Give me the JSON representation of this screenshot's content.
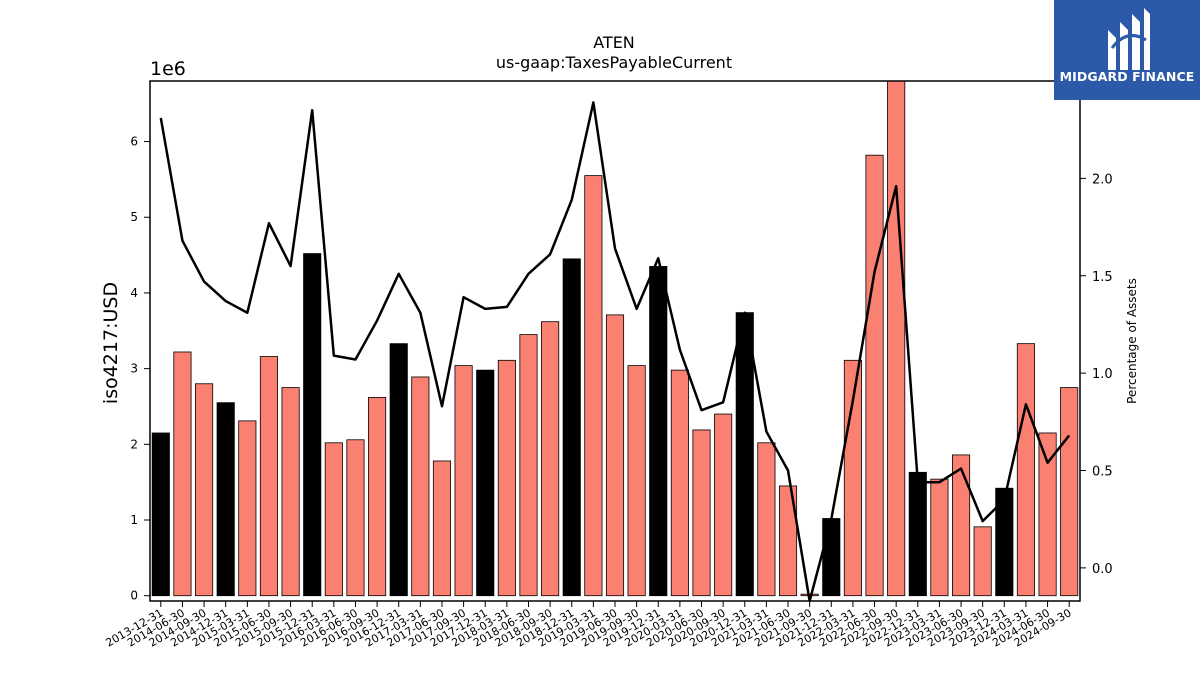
{
  "chart_data": {
    "type": "bar",
    "title": "ATEN",
    "subtitle": "us-gaap:TaxesPayableCurrent",
    "ylabel": "iso4217:USD",
    "y2label": "Percentage of Assets",
    "y_multiplier_label": "1e6",
    "ylim": [
      -0.07,
      6.8
    ],
    "y2lim": [
      -0.17,
      2.5
    ],
    "yticks": [
      0,
      1,
      2,
      3,
      4,
      5,
      6
    ],
    "y2ticks": [
      "0.0",
      "0.5",
      "1.0",
      "1.5",
      "2.0"
    ],
    "colors": {
      "q4_bar": "#000000",
      "other_bar": "#fa8072",
      "line": "#000000"
    },
    "categories": [
      "2013-12-31",
      "2014-06-30",
      "2014-09-30",
      "2014-12-31",
      "2015-03-31",
      "2015-06-30",
      "2015-09-30",
      "2015-12-31",
      "2016-03-31",
      "2016-06-30",
      "2016-09-30",
      "2016-12-31",
      "2017-03-31",
      "2017-06-30",
      "2017-09-30",
      "2017-12-31",
      "2018-03-31",
      "2018-06-30",
      "2018-09-30",
      "2018-12-31",
      "2019-03-31",
      "2019-06-30",
      "2019-09-30",
      "2019-12-31",
      "2020-03-31",
      "2020-06-30",
      "2020-09-30",
      "2020-12-31",
      "2021-03-31",
      "2021-06-30",
      "2021-09-30",
      "2021-12-31",
      "2022-03-31",
      "2022-06-30",
      "2022-09-30",
      "2022-12-31",
      "2023-03-31",
      "2023-06-30",
      "2023-09-30",
      "2023-12-31",
      "2024-03-31",
      "2024-06-30",
      "2024-09-30"
    ],
    "series": [
      {
        "type": "bar",
        "values": [
          2.15,
          3.22,
          2.8,
          2.55,
          2.31,
          3.16,
          2.75,
          4.52,
          2.02,
          2.06,
          2.62,
          3.33,
          2.89,
          1.78,
          3.04,
          2.98,
          3.11,
          3.45,
          3.62,
          4.45,
          5.55,
          3.71,
          3.04,
          4.35,
          2.98,
          2.19,
          2.4,
          3.74,
          2.02,
          1.45,
          0.02,
          1.02,
          3.11,
          5.82,
          6.8,
          1.63,
          1.54,
          1.86,
          0.91,
          1.42,
          3.33,
          2.15,
          2.75
        ]
      },
      {
        "type": "line",
        "axis": "right",
        "values": [
          2.31,
          1.68,
          1.47,
          1.37,
          1.31,
          1.77,
          1.55,
          2.35,
          1.09,
          1.07,
          1.27,
          1.51,
          1.31,
          0.83,
          1.39,
          1.33,
          1.34,
          1.51,
          1.61,
          1.89,
          2.39,
          1.64,
          1.33,
          1.59,
          1.12,
          0.81,
          0.85,
          1.31,
          0.7,
          0.5,
          -0.17,
          0.25,
          0.86,
          1.52,
          1.96,
          0.44,
          0.44,
          0.51,
          0.24,
          0.35,
          0.84,
          0.54,
          0.68
        ]
      }
    ]
  },
  "logo": {
    "text": "MIDGARD FINANCE"
  }
}
